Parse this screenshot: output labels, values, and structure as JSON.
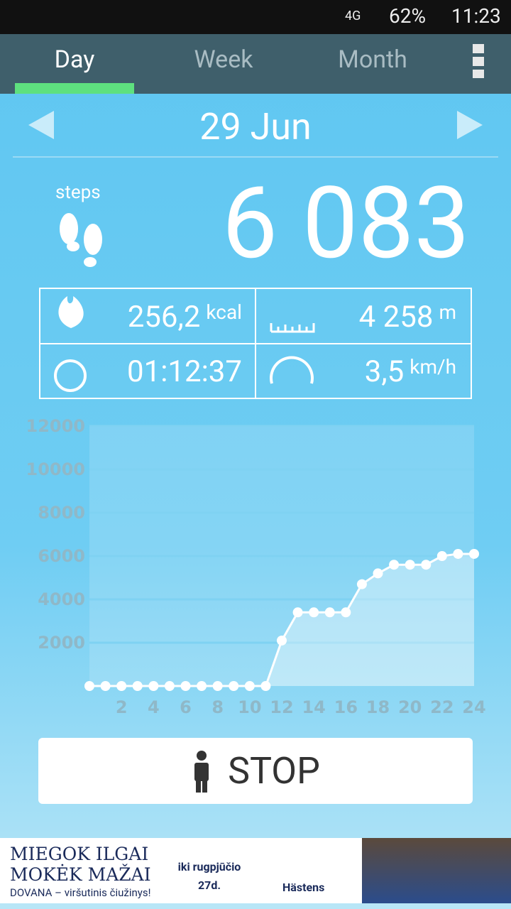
{
  "status_bar": {
    "network": "4G",
    "battery": "62%",
    "time": "11:23"
  },
  "tabs": [
    "Day",
    "Week",
    "Month"
  ],
  "date": "29 Jun",
  "steps": {
    "label": "steps",
    "value": "6 083"
  },
  "stats": [
    {
      "value": "256,2",
      "unit": "kcal"
    },
    {
      "value": "4 258",
      "unit": "m"
    },
    {
      "value": "01:12:37"
    },
    {
      "value": "3,5",
      "unit": "km/h"
    }
  ],
  "chart_data": {
    "type": "line",
    "x": [
      0,
      1,
      2,
      3,
      4,
      5,
      6,
      7,
      8,
      9,
      10,
      11,
      12,
      13,
      14,
      15,
      16,
      17,
      18,
      19,
      20,
      21,
      22,
      23,
      24
    ],
    "values": [
      0,
      0,
      0,
      0,
      0,
      0,
      0,
      0,
      0,
      0,
      0,
      0,
      2100,
      3400,
      3400,
      3400,
      3400,
      4700,
      5200,
      5600,
      5600,
      5600,
      6000,
      6100,
      6100
    ],
    "color": "#ffffff",
    "xlim": [
      0,
      24
    ],
    "xticks": [
      2,
      4,
      6,
      8,
      10,
      12,
      14,
      16,
      18,
      20,
      22,
      24
    ],
    "ylim": [
      0,
      12000
    ],
    "yticks": [
      2000,
      4000,
      6000,
      8000,
      10000,
      12000
    ],
    "grid": true
  },
  "button": "STOP",
  "ad": {
    "line1": "MIEGOK ILGAI",
    "line2": "MOKĖK MAŽAI",
    "line3": "DOVANA – viršutinis čiužinys!",
    "until": "iki rugpjūčio",
    "day": "27d.",
    "brand": "Hästens"
  }
}
